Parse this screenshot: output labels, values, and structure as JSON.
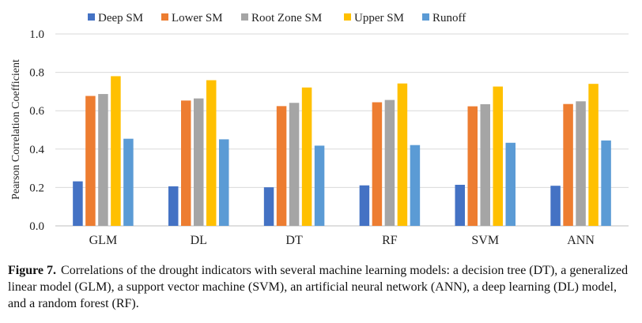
{
  "chart_data": {
    "type": "bar",
    "categories": [
      "GLM",
      "DL",
      "DT",
      "RF",
      "SVM",
      "ANN"
    ],
    "series": [
      {
        "name": "Deep SM",
        "color": "#4472C4",
        "values": [
          0.232,
          0.206,
          0.201,
          0.211,
          0.214,
          0.209
        ]
      },
      {
        "name": "Lower SM",
        "color": "#ED7D31",
        "values": [
          0.677,
          0.653,
          0.624,
          0.644,
          0.623,
          0.635
        ]
      },
      {
        "name": "Root Zone SM",
        "color": "#A5A5A5",
        "values": [
          0.687,
          0.664,
          0.641,
          0.656,
          0.634,
          0.649
        ]
      },
      {
        "name": "Upper SM",
        "color": "#FFC000",
        "values": [
          0.78,
          0.759,
          0.721,
          0.742,
          0.726,
          0.74
        ]
      },
      {
        "name": "Runoff",
        "color": "#5B9BD5",
        "values": [
          0.454,
          0.451,
          0.418,
          0.421,
          0.433,
          0.445
        ]
      }
    ],
    "ylabel": "Pearson Correlation Coefficient",
    "xlabel": "",
    "ylim": [
      0,
      1.0
    ],
    "yticks": [
      "0.0",
      "0.2",
      "0.4",
      "0.6",
      "0.8",
      "1.0"
    ],
    "grid": true,
    "legend_position": "top"
  },
  "caption": {
    "label": "Figure 7.",
    "text": "Correlations of the drought indicators with several machine learning models: a decision tree (DT), a generalized linear model (GLM), a support vector machine (SVM), an artificial neural network (ANN), a deep learning (DL) model, and a random forest (RF)."
  }
}
